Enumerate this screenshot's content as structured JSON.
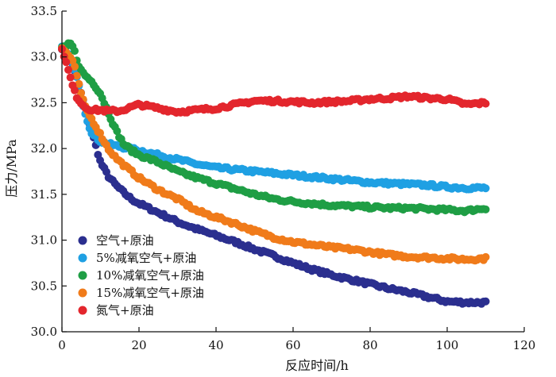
{
  "chart_data": {
    "type": "scatter",
    "title": "",
    "xlabel": "反应时间/h",
    "ylabel": "压力/MPa",
    "xlim": [
      0,
      120
    ],
    "ylim": [
      30.0,
      33.5
    ],
    "x_ticks": [
      0,
      20,
      40,
      60,
      80,
      100,
      120
    ],
    "y_ticks": [
      30.0,
      30.5,
      31.0,
      31.5,
      32.0,
      32.5,
      33.0,
      33.5
    ],
    "x_tick_labels": [
      "0",
      "20",
      "40",
      "60",
      "80",
      "100",
      "120"
    ],
    "y_tick_labels": [
      "30.0",
      "30.5",
      "31.0",
      "31.5",
      "32.0",
      "32.5",
      "33.0",
      "33.5"
    ],
    "grid": false,
    "legend_position": "bottom-left",
    "series": [
      {
        "name": "空气+原油",
        "color": "#2b2f8f",
        "points": [
          [
            0,
            33.1
          ],
          [
            1,
            33.05
          ],
          [
            2,
            33.0
          ],
          [
            3,
            32.9
          ],
          [
            4,
            32.75
          ],
          [
            5,
            32.6
          ],
          [
            6,
            32.45
          ],
          [
            7,
            32.3
          ],
          [
            8,
            32.15
          ],
          [
            9,
            32.0
          ],
          [
            10,
            31.85
          ],
          [
            12,
            31.7
          ],
          [
            14,
            31.6
          ],
          [
            16,
            31.52
          ],
          [
            18,
            31.45
          ],
          [
            20,
            31.4
          ],
          [
            25,
            31.3
          ],
          [
            30,
            31.2
          ],
          [
            35,
            31.12
          ],
          [
            40,
            31.05
          ],
          [
            45,
            30.98
          ],
          [
            50,
            30.9
          ],
          [
            55,
            30.83
          ],
          [
            60,
            30.75
          ],
          [
            65,
            30.68
          ],
          [
            70,
            30.62
          ],
          [
            75,
            30.57
          ],
          [
            80,
            30.52
          ],
          [
            85,
            30.47
          ],
          [
            90,
            30.43
          ],
          [
            95,
            30.38
          ],
          [
            100,
            30.33
          ],
          [
            105,
            30.32
          ],
          [
            110,
            30.32
          ]
        ]
      },
      {
        "name": "5%减氧空气+原油",
        "color": "#1fa0e3",
        "points": [
          [
            0,
            33.1
          ],
          [
            1,
            33.05
          ],
          [
            2,
            33.0
          ],
          [
            3,
            32.9
          ],
          [
            4,
            32.75
          ],
          [
            5,
            32.55
          ],
          [
            6,
            32.4
          ],
          [
            7,
            32.25
          ],
          [
            8,
            32.15
          ],
          [
            10,
            32.08
          ],
          [
            12,
            32.05
          ],
          [
            15,
            32.02
          ],
          [
            20,
            31.98
          ],
          [
            25,
            31.93
          ],
          [
            30,
            31.88
          ],
          [
            35,
            31.83
          ],
          [
            40,
            31.79
          ],
          [
            45,
            31.77
          ],
          [
            50,
            31.75
          ],
          [
            55,
            31.73
          ],
          [
            60,
            31.71
          ],
          [
            65,
            31.69
          ],
          [
            70,
            31.67
          ],
          [
            75,
            31.65
          ],
          [
            80,
            31.63
          ],
          [
            85,
            31.62
          ],
          [
            90,
            31.61
          ],
          [
            95,
            31.6
          ],
          [
            100,
            31.58
          ],
          [
            105,
            31.57
          ],
          [
            110,
            31.57
          ]
        ]
      },
      {
        "name": "10%减氧空气+原油",
        "color": "#1f9e45",
        "points": [
          [
            0,
            33.1
          ],
          [
            1,
            33.1
          ],
          [
            2,
            33.15
          ],
          [
            3,
            33.1
          ],
          [
            4,
            32.95
          ],
          [
            5,
            32.85
          ],
          [
            6,
            32.8
          ],
          [
            8,
            32.72
          ],
          [
            10,
            32.6
          ],
          [
            12,
            32.4
          ],
          [
            14,
            32.2
          ],
          [
            16,
            32.05
          ],
          [
            18,
            31.98
          ],
          [
            20,
            31.93
          ],
          [
            25,
            31.85
          ],
          [
            30,
            31.75
          ],
          [
            35,
            31.68
          ],
          [
            40,
            31.62
          ],
          [
            45,
            31.56
          ],
          [
            50,
            31.5
          ],
          [
            55,
            31.45
          ],
          [
            60,
            31.42
          ],
          [
            65,
            31.4
          ],
          [
            70,
            31.38
          ],
          [
            75,
            31.37
          ],
          [
            80,
            31.36
          ],
          [
            85,
            31.35
          ],
          [
            90,
            31.35
          ],
          [
            95,
            31.34
          ],
          [
            100,
            31.33
          ],
          [
            105,
            31.32
          ],
          [
            110,
            31.35
          ]
        ]
      },
      {
        "name": "15%减氧空气+原油",
        "color": "#f07b1a",
        "points": [
          [
            0,
            33.1
          ],
          [
            1,
            33.05
          ],
          [
            2,
            33.0
          ],
          [
            3,
            32.95
          ],
          [
            4,
            32.75
          ],
          [
            5,
            32.6
          ],
          [
            6,
            32.45
          ],
          [
            8,
            32.3
          ],
          [
            10,
            32.15
          ],
          [
            12,
            32.0
          ],
          [
            14,
            31.9
          ],
          [
            16,
            31.82
          ],
          [
            18,
            31.75
          ],
          [
            20,
            31.68
          ],
          [
            25,
            31.55
          ],
          [
            30,
            31.45
          ],
          [
            35,
            31.32
          ],
          [
            40,
            31.25
          ],
          [
            45,
            31.18
          ],
          [
            50,
            31.1
          ],
          [
            55,
            31.03
          ],
          [
            60,
            30.98
          ],
          [
            65,
            30.95
          ],
          [
            70,
            30.92
          ],
          [
            75,
            30.9
          ],
          [
            80,
            30.87
          ],
          [
            85,
            30.84
          ],
          [
            90,
            30.82
          ],
          [
            95,
            30.81
          ],
          [
            100,
            30.8
          ],
          [
            105,
            30.79
          ],
          [
            110,
            30.8
          ]
        ]
      },
      {
        "name": "氮气+原油",
        "color": "#e3262d",
        "points": [
          [
            0,
            33.1
          ],
          [
            1,
            32.95
          ],
          [
            2,
            32.8
          ],
          [
            3,
            32.65
          ],
          [
            4,
            32.55
          ],
          [
            5,
            32.5
          ],
          [
            6,
            32.45
          ],
          [
            8,
            32.42
          ],
          [
            10,
            32.42
          ],
          [
            12,
            32.41
          ],
          [
            15,
            32.41
          ],
          [
            20,
            32.48
          ],
          [
            25,
            32.44
          ],
          [
            30,
            32.4
          ],
          [
            35,
            32.42
          ],
          [
            40,
            32.44
          ],
          [
            45,
            32.48
          ],
          [
            50,
            32.52
          ],
          [
            55,
            32.52
          ],
          [
            60,
            32.51
          ],
          [
            65,
            32.5
          ],
          [
            70,
            32.51
          ],
          [
            75,
            32.52
          ],
          [
            80,
            32.54
          ],
          [
            85,
            32.55
          ],
          [
            90,
            32.57
          ],
          [
            95,
            32.55
          ],
          [
            100,
            32.54
          ],
          [
            105,
            32.48
          ],
          [
            110,
            32.5
          ]
        ]
      }
    ]
  }
}
